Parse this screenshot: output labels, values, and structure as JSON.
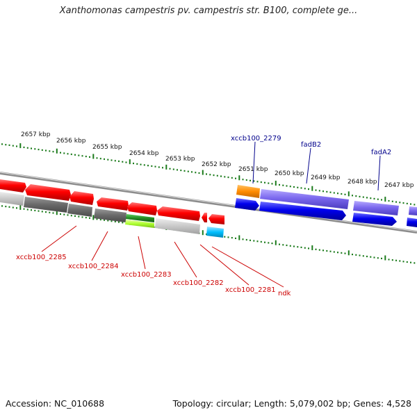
{
  "title": "Xanthomonas campestris pv. campestris str. B100, complete ge...",
  "footer": {
    "accession": "Accession: NC_010688",
    "summary": "Topology: circular; Length: 5,079,002 bp; Genes: 4,528"
  },
  "ticks": [
    "2657 kbp",
    "2656 kbp",
    "2655 kbp",
    "2654 kbp",
    "2653 kbp",
    "2652 kbp",
    "2651 kbp",
    "2650 kbp",
    "2649 kbp",
    "2648 kbp",
    "2647 kbp"
  ],
  "top_labels": [
    "xccb100_2279",
    "fadB2",
    "fadA2"
  ],
  "bottom_labels": [
    "xccb100_2285",
    "xccb100_2284",
    "xccb100_2283",
    "xccb100_2282",
    "xccb100_2281",
    "ndk"
  ],
  "colors": {
    "tick_green": "#1a7a1a",
    "reverse_gene": "#ff0000",
    "forward_gene": "#0000ee",
    "gene_lavender": "#7b68ee",
    "gene_orange": "#ff8c00",
    "gene_cyan": "#00bfff",
    "gene_lime": "#adff2f",
    "gene_darkgreen": "#228b22",
    "gene_darkgray": "#696969",
    "gene_lightgray": "#c8c8c8",
    "top_label": "#00008b",
    "bottom_label": "#cc0000"
  }
}
